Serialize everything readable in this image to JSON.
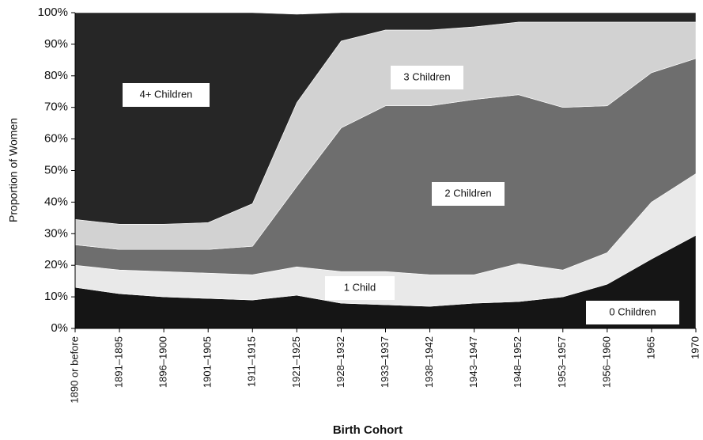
{
  "chart_data": {
    "type": "stacked_area",
    "y_label": "Proportion of Women",
    "x_label": "Birth Cohort",
    "categories": [
      "1890 or before",
      "1891–1895",
      "1896–1900",
      "1901–1905",
      "1911–1915",
      "1921–1925",
      "1928–1932",
      "1933–1937",
      "1938–1942",
      "1943–1947",
      "1948–1952",
      "1953–1957",
      "1956–1960",
      "1965",
      "1970"
    ],
    "series": [
      {
        "name": "0 Children",
        "color": "#151515",
        "values": [
          13,
          11,
          10,
          9.5,
          9,
          10.5,
          8,
          7.5,
          7,
          8,
          8.5,
          10,
          14,
          22,
          29.5
        ]
      },
      {
        "name": "1 Child",
        "color": "#e9e9e9",
        "values": [
          7,
          7.5,
          8,
          8,
          8,
          9,
          10,
          10.5,
          10,
          9,
          12,
          8.5,
          10,
          18,
          19.5
        ]
      },
      {
        "name": "2 Children",
        "color": "#6e6e6e",
        "values": [
          6.5,
          6.5,
          7,
          7.5,
          9,
          25.5,
          45.5,
          52.5,
          53.5,
          55.5,
          53.5,
          51.5,
          46.5,
          41,
          36.5
        ]
      },
      {
        "name": "3 Children",
        "color": "#d2d2d2",
        "values": [
          8,
          8,
          8,
          8.5,
          13.5,
          26.5,
          27.5,
          24,
          24,
          23,
          23,
          27,
          26.5,
          16,
          11.5
        ]
      },
      {
        "name": "4+ Children",
        "color": "#262626",
        "values": [
          65.5,
          67,
          67,
          66.5,
          60.5,
          28,
          9,
          5.5,
          5.5,
          4.5,
          3,
          3,
          3,
          3,
          3
        ]
      }
    ],
    "ylim": [
      0,
      100
    ],
    "yticks": [
      {
        "value": 0,
        "label": "0%"
      },
      {
        "value": 10,
        "label": "10%"
      },
      {
        "value": 20,
        "label": "20%"
      },
      {
        "value": 30,
        "label": "30%"
      },
      {
        "value": 40,
        "label": "40%"
      },
      {
        "value": 50,
        "label": "50%"
      },
      {
        "value": 60,
        "label": "60%"
      },
      {
        "value": 70,
        "label": "70%"
      },
      {
        "value": 80,
        "label": "80%"
      },
      {
        "value": 90,
        "label": "90%"
      },
      {
        "value": 100,
        "label": "100%"
      }
    ]
  }
}
